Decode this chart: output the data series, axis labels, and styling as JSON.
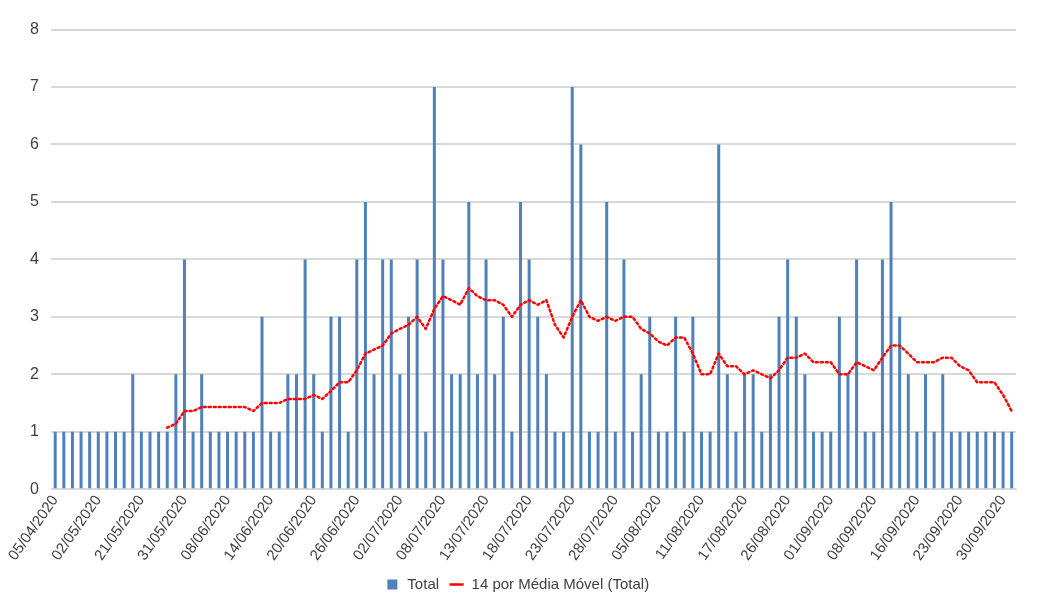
{
  "chart_data": {
    "type": "bar",
    "categories": [
      "05/04/2020",
      null,
      null,
      null,
      null,
      "02/05/2020",
      null,
      null,
      null,
      null,
      "21/05/2020",
      null,
      null,
      null,
      null,
      "31/05/2020",
      null,
      null,
      null,
      null,
      "08/06/2020",
      null,
      null,
      null,
      null,
      "14/06/2020",
      null,
      null,
      null,
      null,
      "20/06/2020",
      null,
      null,
      null,
      null,
      "26/06/2020",
      null,
      null,
      null,
      null,
      "02/07/2020",
      null,
      null,
      null,
      null,
      "08/07/2020",
      null,
      null,
      null,
      null,
      "13/07/2020",
      null,
      null,
      null,
      null,
      "18/07/2020",
      null,
      null,
      null,
      null,
      "23/07/2020",
      null,
      null,
      null,
      null,
      "28/07/2020",
      null,
      null,
      null,
      null,
      "05/08/2020",
      null,
      null,
      null,
      null,
      "11/08/2020",
      null,
      null,
      null,
      null,
      "17/08/2020",
      null,
      null,
      null,
      null,
      "26/08/2020",
      null,
      null,
      null,
      null,
      "01/09/2020",
      null,
      null,
      null,
      null,
      "08/09/2020",
      null,
      null,
      null,
      null,
      "16/09/2020",
      null,
      null,
      null,
      null,
      "23/09/2020",
      null,
      null,
      null,
      null,
      "30/09/2020",
      null
    ],
    "series": [
      {
        "name": "Total",
        "color": "#4f81bd",
        "values": [
          1,
          1,
          1,
          1,
          1,
          1,
          1,
          1,
          1,
          2,
          1,
          1,
          1,
          1,
          2,
          4,
          1,
          2,
          1,
          1,
          1,
          1,
          1,
          1,
          3,
          1,
          1,
          2,
          2,
          4,
          2,
          1,
          3,
          3,
          1,
          4,
          5,
          2,
          4,
          4,
          2,
          3,
          4,
          1,
          7,
          4,
          2,
          2,
          5,
          2,
          4,
          2,
          3,
          1,
          5,
          4,
          3,
          2,
          1,
          1,
          7,
          6,
          1,
          1,
          5,
          1,
          4,
          1,
          2,
          3,
          1,
          1,
          3,
          1,
          3,
          1,
          1,
          6,
          2,
          1,
          2,
          2,
          1,
          2,
          3,
          4,
          3,
          2,
          1,
          1,
          1,
          3,
          2,
          4,
          1,
          1,
          4,
          5,
          3,
          2,
          1,
          2,
          1,
          2,
          1,
          1,
          1,
          1,
          1,
          1,
          1,
          1
        ]
      },
      {
        "name": "14 por Média Móvel (Total)",
        "type": "line",
        "color": "#ff0000",
        "line_style": "dotted",
        "marker": "none",
        "values": [
          null,
          null,
          null,
          null,
          null,
          null,
          null,
          null,
          null,
          null,
          null,
          null,
          null,
          1.07,
          1.14,
          1.36,
          1.36,
          1.43,
          1.43,
          1.43,
          1.43,
          1.43,
          1.43,
          1.36,
          1.5,
          1.5,
          1.5,
          1.57,
          1.57,
          1.57,
          1.64,
          1.57,
          1.71,
          1.86,
          1.86,
          2.07,
          2.36,
          2.43,
          2.5,
          2.71,
          2.79,
          2.86,
          3.0,
          2.79,
          3.14,
          3.36,
          3.29,
          3.21,
          3.5,
          3.36,
          3.29,
          3.29,
          3.21,
          3.0,
          3.21,
          3.29,
          3.21,
          3.29,
          2.86,
          2.64,
          3.0,
          3.29,
          3.0,
          2.93,
          3.0,
          2.93,
          3.0,
          3.0,
          2.79,
          2.71,
          2.57,
          2.5,
          2.64,
          2.64,
          2.36,
          2.0,
          2.0,
          2.36,
          2.14,
          2.14,
          2.0,
          2.07,
          2.0,
          1.93,
          2.07,
          2.29,
          2.29,
          2.36,
          2.21,
          2.21,
          2.21,
          2.0,
          2.0,
          2.21,
          2.14,
          2.07,
          2.29,
          2.5,
          2.5,
          2.36,
          2.21,
          2.21,
          2.21,
          2.29,
          2.29,
          2.14,
          2.07,
          1.86,
          1.86,
          1.86,
          1.64,
          1.36
        ]
      }
    ],
    "ylim": [
      0,
      8
    ],
    "yticks": [
      0,
      1,
      2,
      3,
      4,
      5,
      6,
      7,
      8
    ],
    "grid": "y",
    "legend": "bottom"
  }
}
